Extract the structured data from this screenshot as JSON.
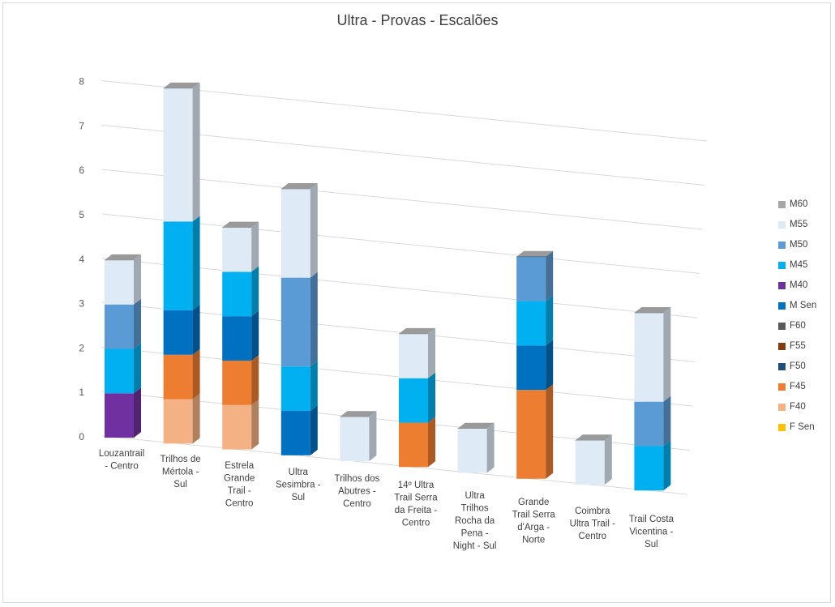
{
  "chart_data": {
    "type": "bar",
    "stacked": true,
    "three_d": true,
    "title": "Ultra - Provas - Escalões",
    "xlabel": "",
    "ylabel": "",
    "ylim": [
      0,
      8
    ],
    "yticks": [
      0,
      1,
      2,
      3,
      4,
      5,
      6,
      7,
      8
    ],
    "grid": true,
    "legend_position": "right",
    "categories": [
      "Louzantrail - Centro",
      "Trilhos de Mértola - Sul",
      "Estrela Grande Trail - Centro",
      "Ultra Sesimbra - Sul",
      "Trilhos dos Abutres - Centro",
      "14º Ultra Trail Serra da Freita - Centro",
      "Ultra Trilhos Rocha da Pena - Night - Sul",
      "Grande Trail Serra d'Arga - Norte",
      "Coimbra Ultra Trail - Centro",
      "Trail Costa Vicentina - Sul"
    ],
    "category_label_lines": [
      [
        "Louzantrail",
        "- Centro"
      ],
      [
        "Trilhos de",
        "Mértola -",
        "Sul"
      ],
      [
        "Estrela",
        "Grande",
        "Trail -",
        "Centro"
      ],
      [
        "Ultra",
        "Sesimbra -",
        "Sul"
      ],
      [
        "Trilhos dos",
        "Abutres -",
        "Centro"
      ],
      [
        "14º Ultra",
        "Trail Serra",
        "da Freita -",
        "Centro"
      ],
      [
        "Ultra",
        "Trilhos",
        "Rocha da",
        "Pena -",
        "Night - Sul"
      ],
      [
        "Grande",
        "Trail Serra",
        "d'Arga -",
        "Norte"
      ],
      [
        "Coimbra",
        "Ultra Trail -",
        "Centro"
      ],
      [
        "Trail Costa",
        "Vicentina -",
        "Sul"
      ]
    ],
    "series": [
      {
        "name": "F Sen",
        "color": "#ffc000",
        "values": [
          0,
          0,
          0,
          0,
          0,
          0,
          0,
          0,
          0,
          0
        ]
      },
      {
        "name": "F40",
        "color": "#f4b183",
        "values": [
          0,
          1,
          1,
          0,
          0,
          0,
          0,
          0,
          0,
          0
        ]
      },
      {
        "name": "F45",
        "color": "#ed7d31",
        "values": [
          0,
          1,
          1,
          0,
          0,
          1,
          0,
          2,
          0,
          0
        ]
      },
      {
        "name": "F50",
        "color": "#1f4e79",
        "values": [
          0,
          0,
          0,
          0,
          0,
          0,
          0,
          0,
          0,
          0
        ]
      },
      {
        "name": "F55",
        "color": "#843c0c",
        "values": [
          0,
          0,
          0,
          0,
          0,
          0,
          0,
          0,
          0,
          0
        ]
      },
      {
        "name": "F60",
        "color": "#595959",
        "values": [
          0,
          0,
          0,
          0,
          0,
          0,
          0,
          0,
          0,
          0
        ]
      },
      {
        "name": "M Sen",
        "color": "#0070c0",
        "values": [
          0,
          1,
          1,
          1,
          0,
          0,
          0,
          1,
          0,
          0
        ]
      },
      {
        "name": "M40",
        "color": "#7030a0",
        "values": [
          1,
          0,
          0,
          0,
          0,
          0,
          0,
          0,
          0,
          0
        ]
      },
      {
        "name": "M45",
        "color": "#00b0f0",
        "values": [
          1,
          2,
          1,
          1,
          0,
          1,
          0,
          1,
          0,
          1
        ]
      },
      {
        "name": "M50",
        "color": "#5b9bd5",
        "values": [
          1,
          0,
          0,
          2,
          0,
          0,
          0,
          1,
          0,
          1
        ]
      },
      {
        "name": "M55",
        "color": "#deebf7",
        "values": [
          1,
          3,
          1,
          2,
          1,
          1,
          1,
          0,
          1,
          2
        ]
      },
      {
        "name": "M60",
        "color": "#a6a6a6",
        "values": [
          0,
          0,
          0,
          0,
          0,
          0,
          0,
          0,
          0,
          0
        ]
      }
    ],
    "legend_order": [
      "M60",
      "M55",
      "M50",
      "M45",
      "M40",
      "M Sen",
      "F60",
      "F55",
      "F50",
      "F45",
      "F40",
      "F Sen"
    ]
  }
}
